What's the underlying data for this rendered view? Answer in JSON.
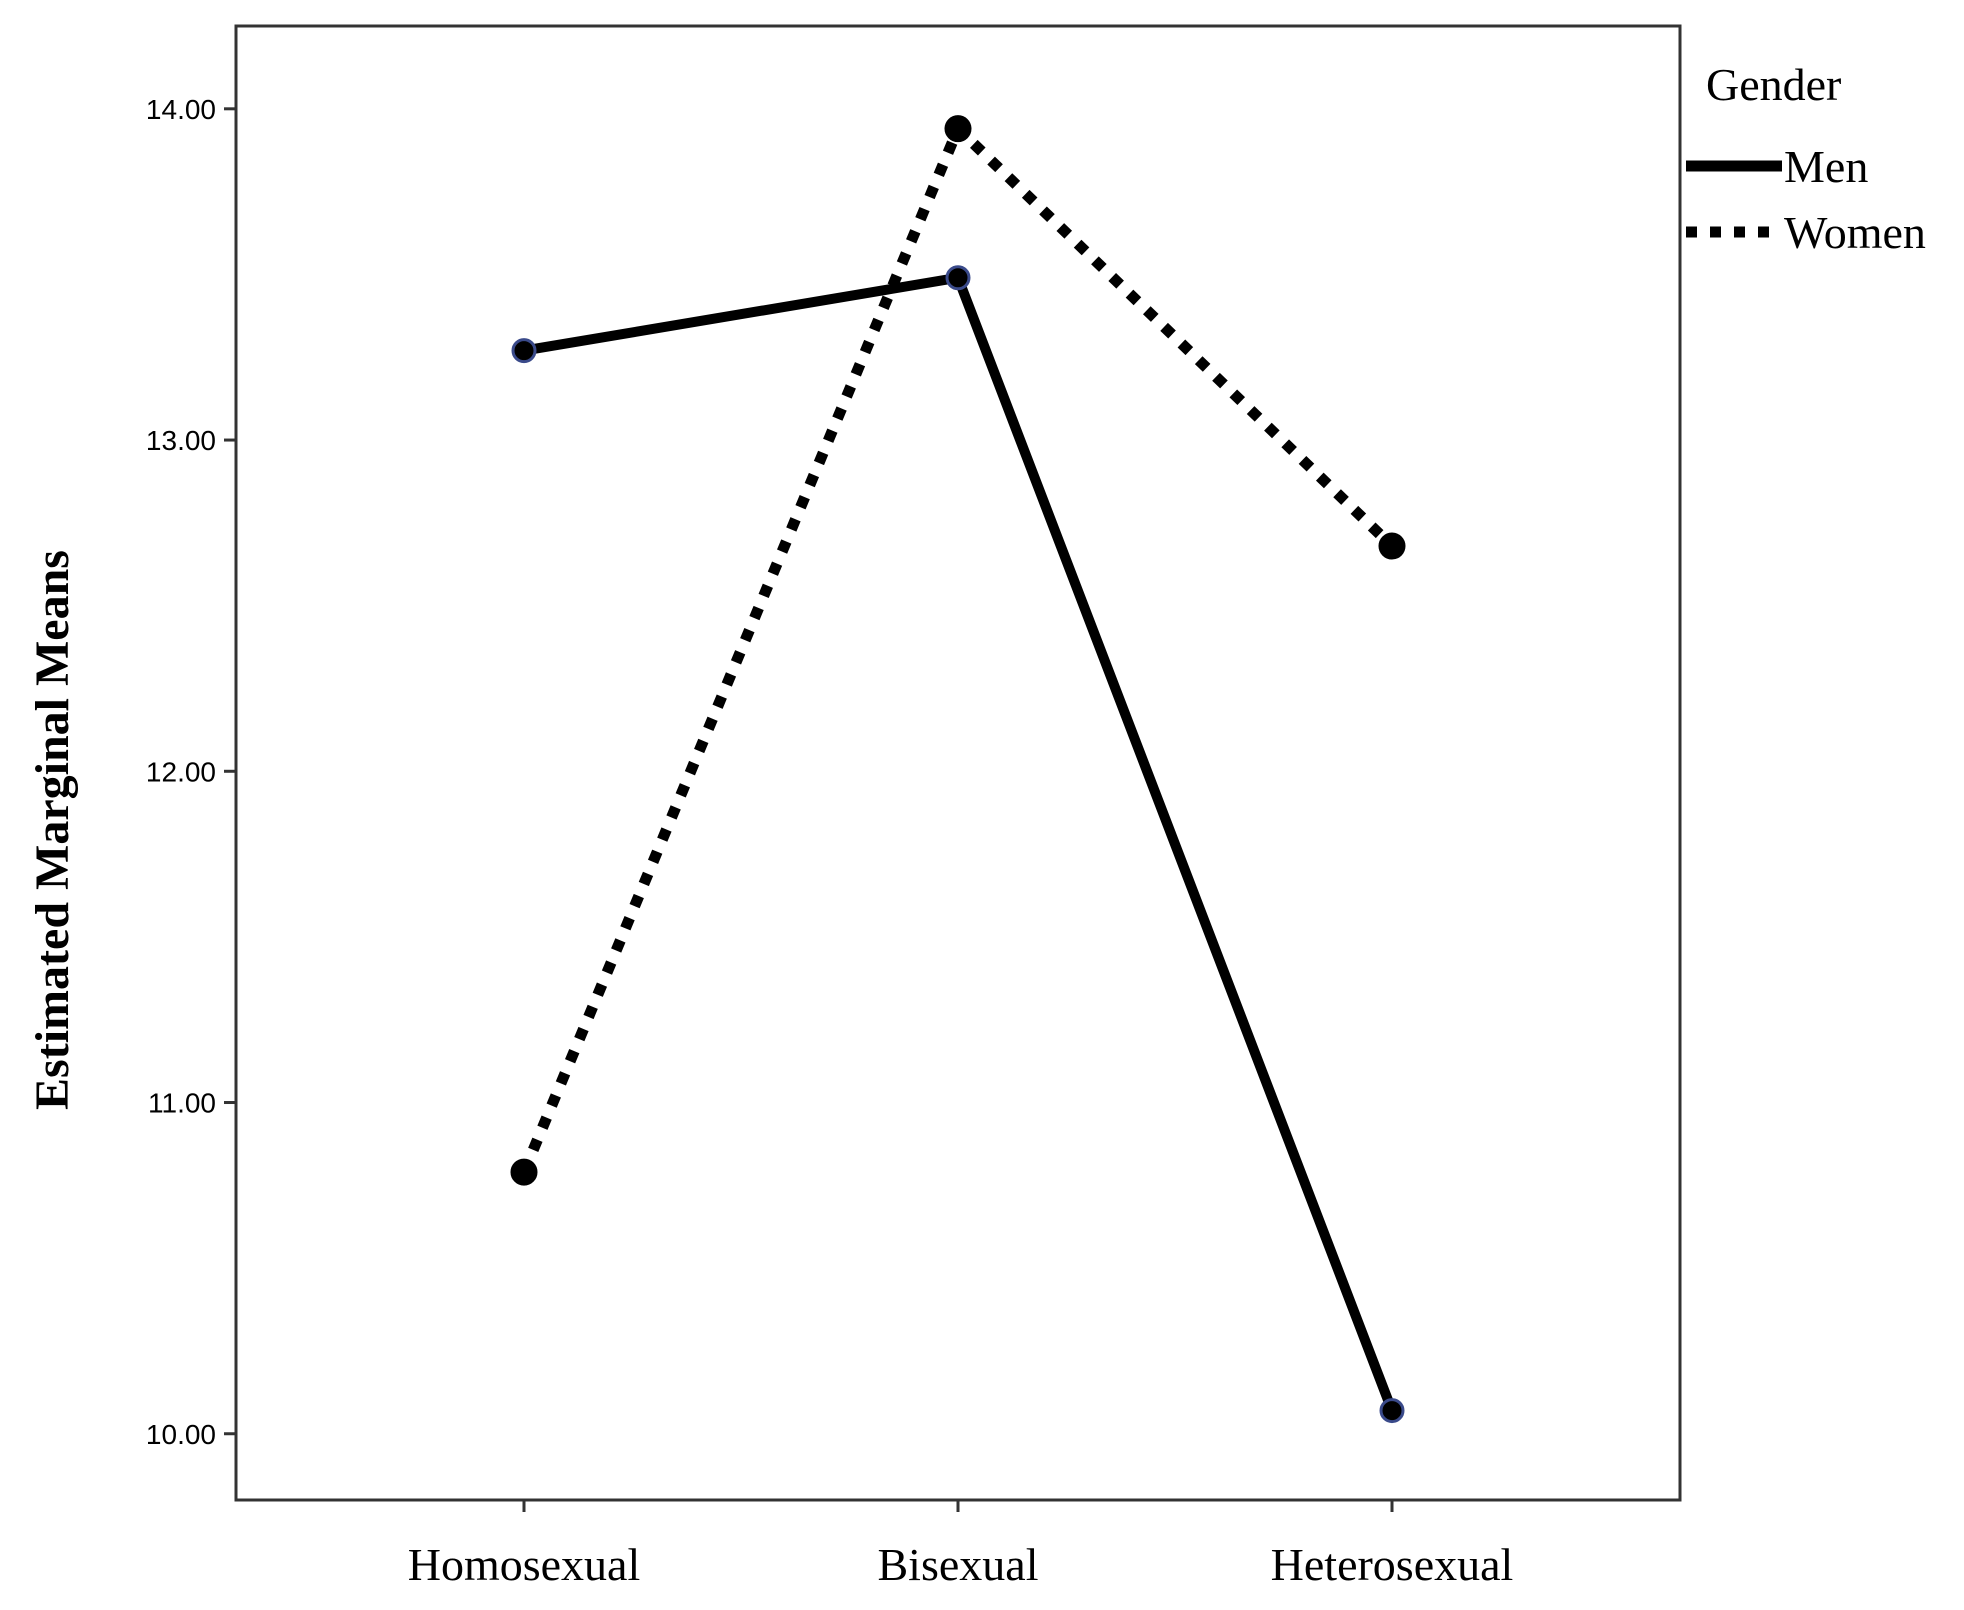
{
  "chart_data": {
    "type": "line",
    "title": "",
    "xlabel": "",
    "ylabel": "Estimated Marginal Means",
    "categories": [
      "Homosexual",
      "Bisexual",
      "Heterosexual"
    ],
    "ylim": [
      9.8,
      14.25
    ],
    "yticks": [
      10,
      11,
      12,
      13,
      14
    ],
    "ytick_labels": [
      "10.00",
      "11.00",
      "12.00",
      "13.00",
      "14.00"
    ],
    "grid": false,
    "legend": {
      "title": "Gender",
      "placement": "top-right-outside"
    },
    "series": [
      {
        "name": "Men",
        "style": "solid",
        "color": "#000000",
        "marker_edge": "#3a4a8a",
        "values": [
          13.27,
          13.49,
          10.07
        ]
      },
      {
        "name": "Women",
        "style": "dotted",
        "color": "#000000",
        "marker_edge": "#000000",
        "values": [
          10.79,
          13.94,
          12.68
        ]
      }
    ]
  }
}
